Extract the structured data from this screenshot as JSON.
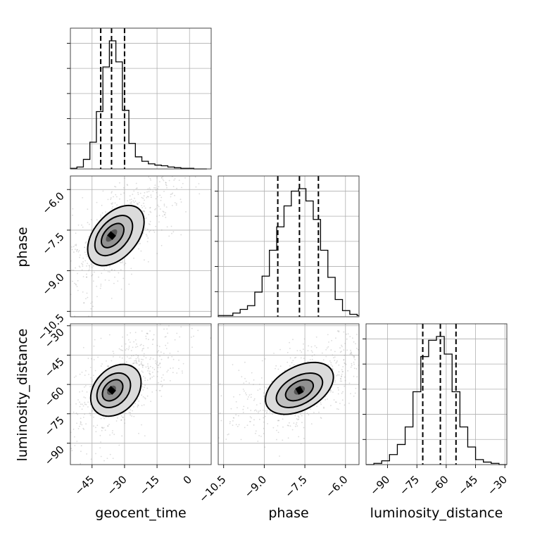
{
  "chart_data": {
    "type": "corner",
    "parameters": [
      "geocent_time",
      "phase",
      "luminosity_distance"
    ],
    "ranges": {
      "geocent_time": [
        -55,
        10
      ],
      "phase": [
        -10.7,
        -5.5
      ],
      "luminosity_distance": [
        -101,
        -29
      ]
    },
    "ticks": {
      "geocent_time": [
        -45,
        -30,
        -15,
        0
      ],
      "phase": [
        -10.5,
        -9.0,
        -7.5,
        -6.0
      ],
      "luminosity_distance": [
        -90,
        -75,
        -60,
        -45,
        -30
      ]
    },
    "tick_labels": {
      "geocent_time": [
        "−45",
        "−30",
        "−15",
        "0"
      ],
      "phase": [
        "−10.5",
        "−9.0",
        "−7.5",
        "−6.0"
      ],
      "luminosity_distance": [
        "−90",
        "−75",
        "−60",
        "−45",
        "−30"
      ]
    },
    "quantiles": {
      "geocent_time": [
        -41,
        -36,
        -30
      ],
      "phase": [
        -8.5,
        -7.7,
        -7.0
      ],
      "luminosity_distance": [
        -72,
        -63,
        -55
      ]
    },
    "histograms": {
      "geocent_time": {
        "bin_edges": [
          -55,
          -52,
          -49,
          -46,
          -43,
          -40,
          -37,
          -34,
          -31,
          -28,
          -25,
          -22,
          -19,
          -16,
          -13,
          -10,
          -7,
          -4,
          -1,
          2,
          5,
          8
        ],
        "counts": [
          1,
          3,
          15,
          42,
          90,
          160,
          201,
          168,
          92,
          40,
          19,
          12,
          8,
          6,
          5,
          3,
          2,
          1,
          1,
          0,
          0
        ]
      },
      "phase": {
        "bin_edges": [
          -10.7,
          -10.43,
          -10.16,
          -9.89,
          -9.62,
          -9.35,
          -9.08,
          -8.81,
          -8.54,
          -8.27,
          -8.0,
          -7.73,
          -7.46,
          -7.19,
          -6.92,
          -6.65,
          -6.38,
          -6.11,
          -5.84,
          -5.57,
          -5.5
        ],
        "counts": [
          1,
          1,
          3,
          6,
          9,
          20,
          33,
          54,
          73,
          90,
          102,
          104,
          94,
          79,
          54,
          32,
          14,
          5,
          2,
          1
        ]
      },
      "luminosity_distance": {
        "bin_edges": [
          -101,
          -97,
          -93,
          -89,
          -85,
          -81,
          -77,
          -73,
          -69,
          -65,
          -61,
          -57,
          -53,
          -49,
          -45,
          -41,
          -37,
          -33,
          -29
        ],
        "counts": [
          0,
          1,
          3,
          8,
          16,
          30,
          58,
          86,
          99,
          102,
          88,
          58,
          30,
          14,
          4,
          2,
          1,
          0
        ]
      }
    },
    "pairs": [
      {
        "x": "geocent_time",
        "y": "phase",
        "tilt": 1.15,
        "levels": [
          {
            "cx": -34,
            "cy": -7.7,
            "rx": 18,
            "ry": 2.1,
            "weight": 0.18
          },
          {
            "cx": -35,
            "cy": -7.7,
            "rx": 12,
            "ry": 1.4,
            "weight": 0.32
          },
          {
            "cx": -35.5,
            "cy": -7.7,
            "rx": 7,
            "ry": 0.85,
            "weight": 0.55
          },
          {
            "cx": -36,
            "cy": -7.7,
            "rx": 3,
            "ry": 0.45,
            "weight": 0.85
          }
        ],
        "peak": [
          -36,
          -7.7
        ]
      },
      {
        "x": "geocent_time",
        "y": "luminosity_distance",
        "tilt": 1.1,
        "levels": [
          {
            "cx": -34,
            "cy": -63,
            "rx": 18,
            "ry": 24,
            "weight": 0.18
          },
          {
            "cx": -35,
            "cy": -63,
            "rx": 12,
            "ry": 16,
            "weight": 0.32
          },
          {
            "cx": -35.5,
            "cy": -63,
            "rx": 7,
            "ry": 10,
            "weight": 0.55
          },
          {
            "cx": -36,
            "cy": -63,
            "rx": 3,
            "ry": 4.5,
            "weight": 0.85
          }
        ],
        "peak": [
          -36,
          -63
        ]
      },
      {
        "x": "phase",
        "y": "luminosity_distance",
        "tilt": 0.55,
        "levels": [
          {
            "cx": -7.7,
            "cy": -62,
            "rx": 2.2,
            "ry": 20,
            "weight": 0.18
          },
          {
            "cx": -7.7,
            "cy": -63,
            "rx": 1.5,
            "ry": 13,
            "weight": 0.32
          },
          {
            "cx": -7.7,
            "cy": -63,
            "rx": 0.9,
            "ry": 8,
            "weight": 0.55
          },
          {
            "cx": -7.7,
            "cy": -63,
            "rx": 0.35,
            "ry": 3.5,
            "weight": 0.85
          }
        ],
        "peak": [
          -7.7,
          -63
        ]
      }
    ],
    "grid": true
  }
}
